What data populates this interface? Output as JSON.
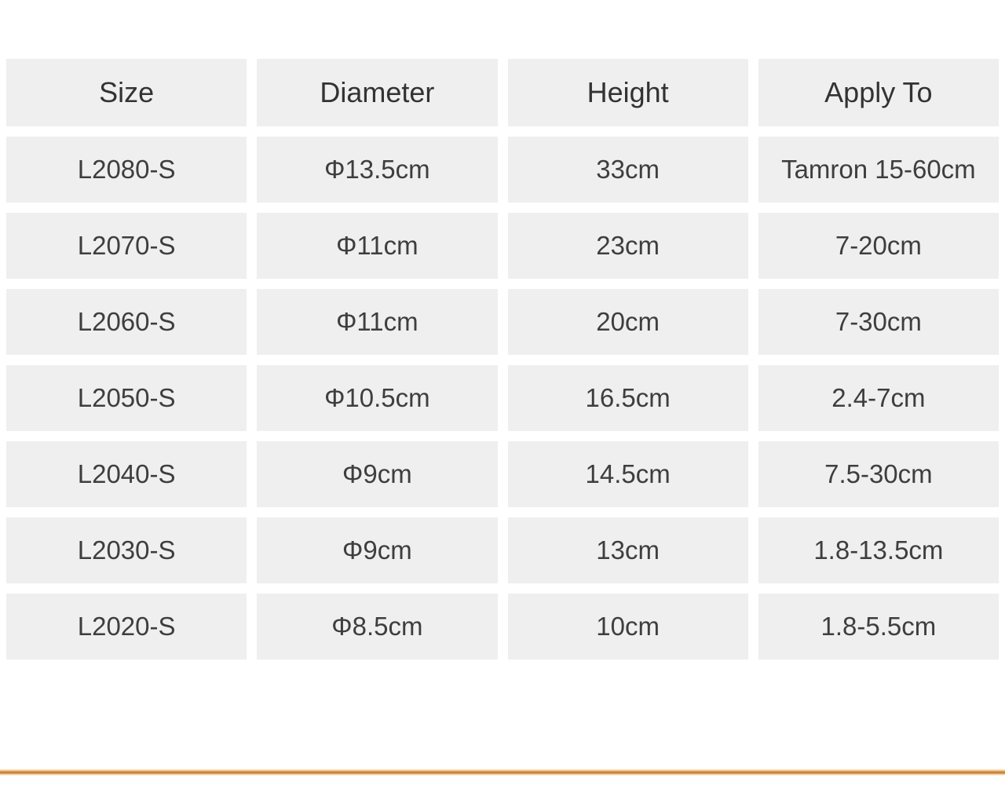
{
  "table": {
    "headers": [
      "Size",
      "Diameter",
      "Height",
      "Apply To"
    ],
    "rows": [
      {
        "size": "L2080-S",
        "diameter": "Φ13.5cm",
        "height": "33cm",
        "apply_to": "Tamron 15-60cm"
      },
      {
        "size": "L2070-S",
        "diameter": "Φ11cm",
        "height": "23cm",
        "apply_to": "7-20cm"
      },
      {
        "size": "L2060-S",
        "diameter": "Φ11cm",
        "height": "20cm",
        "apply_to": "7-30cm"
      },
      {
        "size": "L2050-S",
        "diameter": "Φ10.5cm",
        "height": "16.5cm",
        "apply_to": "2.4-7cm"
      },
      {
        "size": "L2040-S",
        "diameter": "Φ9cm",
        "height": "14.5cm",
        "apply_to": "7.5-30cm"
      },
      {
        "size": "L2030-S",
        "diameter": "Φ9cm",
        "height": "13cm",
        "apply_to": "1.8-13.5cm"
      },
      {
        "size": "L2020-S",
        "diameter": "Φ8.5cm",
        "height": "10cm",
        "apply_to": "1.8-5.5cm"
      }
    ]
  },
  "colors": {
    "cell_background": "#efefef",
    "text": "#3e3e3e",
    "divider_orange": "#cf873c",
    "page_background": "#ffffff"
  }
}
